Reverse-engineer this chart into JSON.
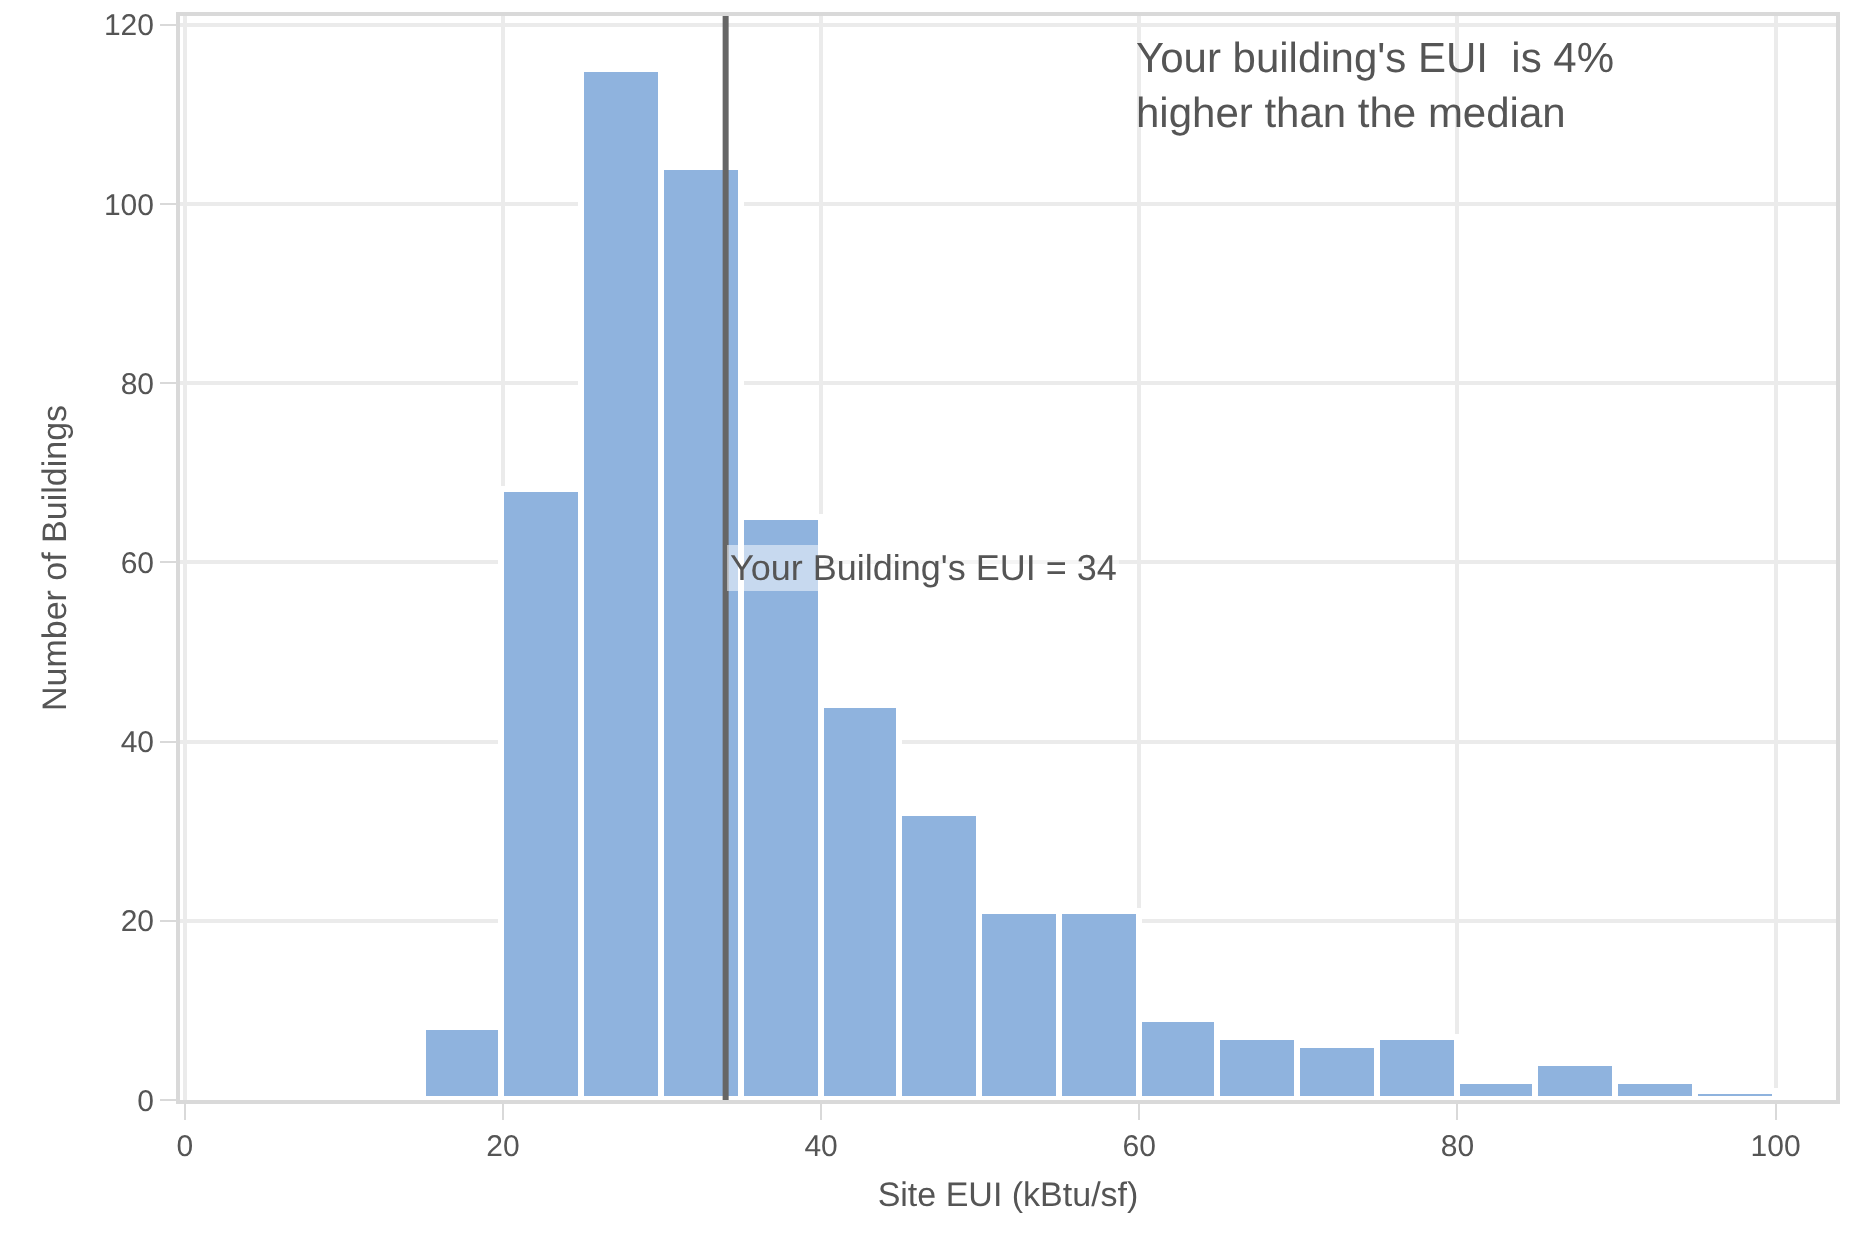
{
  "chart_data": {
    "type": "histogram",
    "xlabel": "Site EUI (kBtu/sf)",
    "ylabel": "Number of Buildings",
    "bins": [
      15,
      20,
      25,
      30,
      35,
      40,
      45,
      50,
      55,
      60,
      65,
      70,
      75,
      80,
      85,
      90,
      95,
      100
    ],
    "values": [
      8,
      68,
      115,
      104,
      65,
      44,
      32,
      21,
      21,
      9,
      7,
      6,
      7,
      2,
      4,
      2,
      1
    ],
    "color": "#8fb3de",
    "xlim": [
      -0.3,
      103.8
    ],
    "xticks": [
      0,
      20,
      40,
      60,
      80,
      100
    ],
    "ylim": [
      0,
      121
    ],
    "yticks": [
      0,
      20,
      40,
      60,
      80,
      100,
      120
    ],
    "grid": true,
    "ref_lines": [
      {
        "axis": "x",
        "value": 34,
        "label": "Your Building's EUI = 34",
        "color": "#666666"
      }
    ],
    "annotations": [
      "Your building's EUI  is 4%\nhigher than the median"
    ]
  }
}
